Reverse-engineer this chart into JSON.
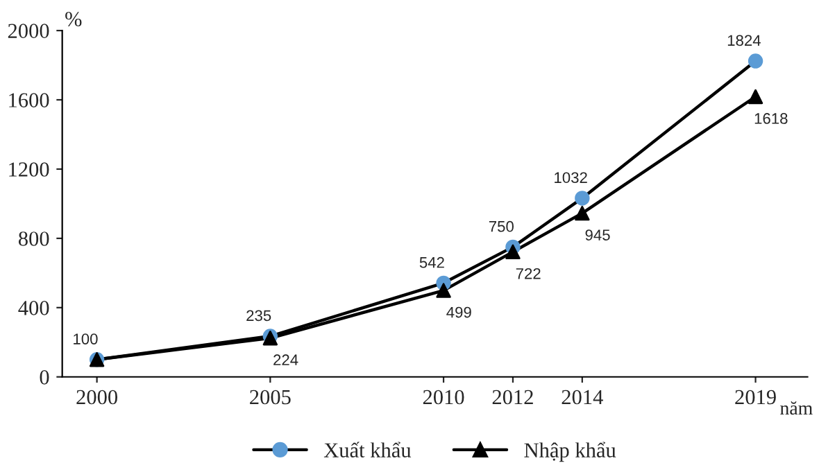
{
  "chart_data": {
    "type": "line",
    "x": [
      2000,
      2005,
      2010,
      2012,
      2014,
      2019
    ],
    "series": [
      {
        "name": "Xuất khẩu",
        "color": "#5b9bd5",
        "marker": "circle",
        "values": [
          100,
          235,
          542,
          750,
          1032,
          1824
        ]
      },
      {
        "name": "Nhập khẩu",
        "color": "#000000",
        "marker": "triangle",
        "values": [
          100,
          224,
          499,
          722,
          945,
          1618
        ],
        "value_labels": [
          null,
          "224",
          "499",
          "722",
          "945",
          "1618"
        ]
      }
    ],
    "xlim": [
      1999,
      2020.5
    ],
    "xticks": [
      2000,
      2005,
      2010,
      2012,
      2014,
      2019
    ],
    "ylim": [
      0,
      2000
    ],
    "yticks": [
      0,
      400,
      800,
      1200,
      1600,
      2000
    ],
    "xlabel": "năm",
    "ylabel": "%",
    "data_labels": true,
    "grid": false,
    "legend": "bottom",
    "line_style": "solid"
  }
}
